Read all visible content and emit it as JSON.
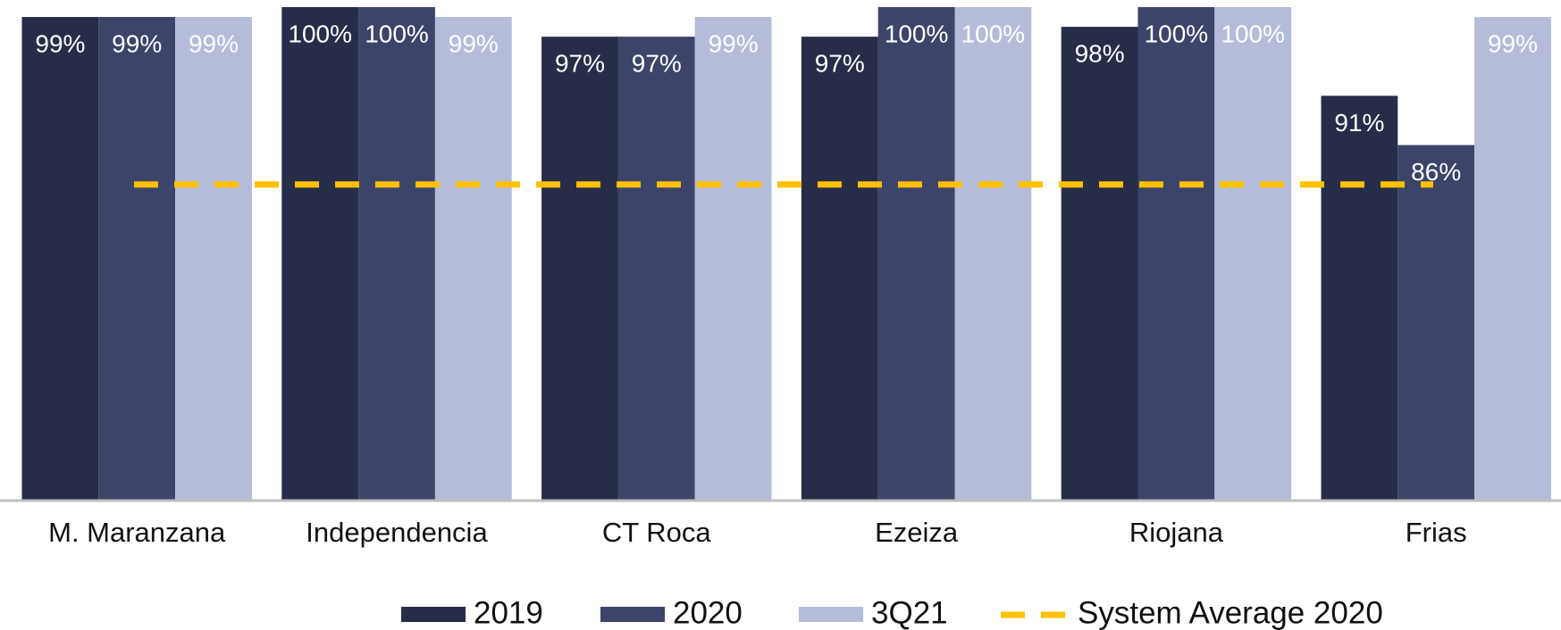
{
  "chart_data": {
    "type": "bar",
    "categories": [
      "M. Maranzana",
      "Independencia",
      "CT Roca",
      "Ezeiza",
      "Riojana",
      "Frias"
    ],
    "series": [
      {
        "name": "2019",
        "color": "#272d48",
        "values": [
          99,
          100,
          97,
          97,
          98,
          91
        ],
        "value_labels": [
          "99%",
          "100%",
          "97%",
          "97%",
          "98%",
          "91%"
        ]
      },
      {
        "name": "2020",
        "color": "#3c4469",
        "values": [
          99,
          100,
          97,
          100,
          100,
          86
        ],
        "value_labels": [
          "99%",
          "100%",
          "97%",
          "100%",
          "100%",
          "86%"
        ]
      },
      {
        "name": "3Q21",
        "color": "#b4bcd9",
        "values": [
          99,
          99,
          99,
          100,
          100,
          99
        ],
        "value_labels": [
          "99%",
          "99%",
          "99%",
          "100%",
          "100%",
          "99%"
        ]
      }
    ],
    "average": {
      "name": "System Average 2020",
      "value": 82,
      "color": "#ffc000"
    },
    "ylim": [
      50,
      100
    ]
  }
}
